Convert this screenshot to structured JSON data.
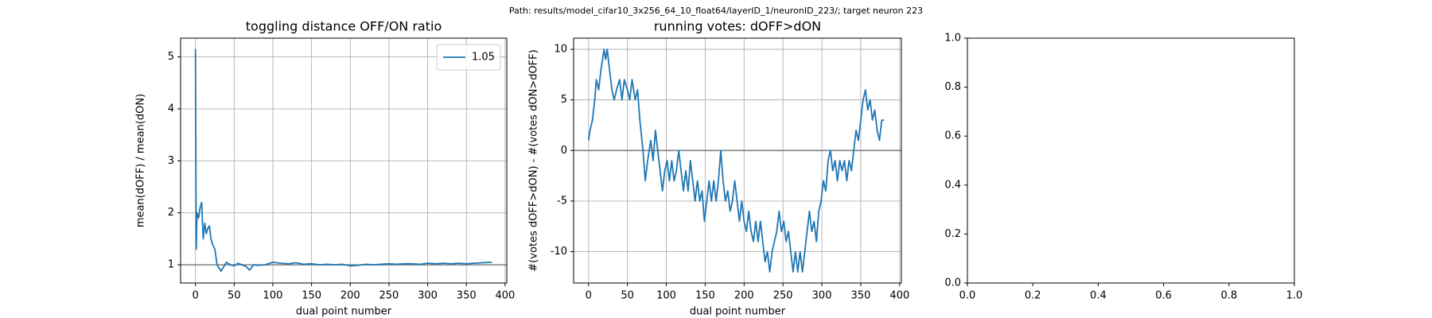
{
  "suptitle": "Path: results/model_cifar10_3x256_64_10_float64/layerID_1/neuronID_223/; target neuron 223",
  "chart_data": [
    {
      "type": "line",
      "title": "toggling distance OFF/ON ratio",
      "x_label": "dual point number",
      "y_label": "mean(dOFF) / mean(dON)",
      "x": [
        0,
        1,
        2,
        4,
        6,
        8,
        10,
        12,
        14,
        16,
        18,
        20,
        22,
        25,
        28,
        30,
        33,
        36,
        40,
        45,
        50,
        55,
        60,
        65,
        70,
        75,
        80,
        90,
        100,
        110,
        120,
        130,
        140,
        150,
        160,
        170,
        180,
        190,
        200,
        210,
        220,
        230,
        240,
        250,
        260,
        270,
        280,
        290,
        300,
        310,
        320,
        330,
        340,
        350,
        360,
        370,
        383
      ],
      "series": [
        {
          "name": "1.05",
          "color": "#1f77b4",
          "values": [
            5.15,
            1.3,
            2.0,
            1.9,
            2.1,
            2.2,
            1.5,
            1.8,
            1.6,
            1.7,
            1.75,
            1.5,
            1.4,
            1.3,
            1.0,
            0.95,
            0.88,
            0.95,
            1.05,
            1.0,
            0.98,
            1.03,
            1.0,
            0.97,
            0.9,
            1.0,
            0.99,
            1.0,
            1.05,
            1.03,
            1.02,
            1.04,
            1.01,
            1.02,
            1.0,
            1.01,
            1.0,
            1.01,
            0.98,
            0.99,
            1.01,
            1.0,
            1.01,
            1.02,
            1.01,
            1.02,
            1.02,
            1.01,
            1.03,
            1.02,
            1.03,
            1.02,
            1.03,
            1.02,
            1.03,
            1.04,
            1.05
          ]
        }
      ],
      "hline": 1,
      "hline_color": "#808080",
      "xlim": [
        -19.2,
        402.2
      ],
      "ylim": [
        0.65,
        5.36
      ],
      "xticks": [
        0,
        50,
        100,
        150,
        200,
        250,
        300,
        350,
        400
      ],
      "yticks": [
        1,
        2,
        3,
        4,
        5
      ],
      "grid": true,
      "legend": "upper right"
    },
    {
      "type": "line",
      "title": "running votes: dOFF>dON",
      "x_label": "dual point number",
      "y_label": "#(votes dOFF>dON) - #(votes dON>dOFF)",
      "x": [
        0,
        2,
        5,
        8,
        10,
        13,
        16,
        18,
        20,
        22,
        24,
        27,
        30,
        33,
        36,
        40,
        43,
        46,
        50,
        53,
        56,
        60,
        63,
        66,
        70,
        73,
        76,
        80,
        83,
        86,
        89,
        92,
        95,
        98,
        101,
        104,
        107,
        110,
        113,
        116,
        119,
        122,
        125,
        128,
        131,
        134,
        137,
        140,
        143,
        146,
        149,
        152,
        155,
        158,
        161,
        164,
        167,
        170,
        173,
        176,
        179,
        182,
        185,
        188,
        191,
        194,
        197,
        200,
        203,
        206,
        209,
        212,
        215,
        218,
        221,
        224,
        227,
        230,
        233,
        236,
        239,
        242,
        245,
        248,
        251,
        254,
        257,
        260,
        263,
        266,
        269,
        272,
        275,
        278,
        281,
        284,
        287,
        290,
        293,
        296,
        299,
        302,
        305,
        308,
        311,
        314,
        317,
        320,
        323,
        326,
        329,
        332,
        335,
        338,
        341,
        344,
        347,
        350,
        353,
        356,
        359,
        362,
        365,
        368,
        371,
        374,
        377,
        380
      ],
      "series": [
        {
          "color": "#1f77b4",
          "values": [
            1,
            2,
            3,
            5,
            7,
            6,
            8,
            9,
            10,
            9,
            10,
            8,
            6,
            5,
            6,
            7,
            5,
            7,
            6,
            5,
            7,
            5,
            6,
            3,
            0,
            -3,
            -1,
            1,
            -1,
            2,
            0,
            -2,
            -4,
            -2,
            -1,
            -3,
            -1,
            -3,
            -2,
            0,
            -2,
            -4,
            -2,
            -4,
            -1,
            -3,
            -5,
            -3,
            -5,
            -4,
            -7,
            -5,
            -3,
            -5,
            -3,
            -5,
            -3,
            0,
            -3,
            -5,
            -4,
            -6,
            -5,
            -3,
            -5,
            -7,
            -5,
            -7,
            -8,
            -6,
            -8,
            -9,
            -7,
            -9,
            -7,
            -9,
            -11,
            -10,
            -12,
            -10,
            -9,
            -8,
            -6,
            -8,
            -7,
            -9,
            -8,
            -10,
            -12,
            -10,
            -12,
            -10,
            -12,
            -10,
            -8,
            -6,
            -8,
            -7,
            -9,
            -6,
            -5,
            -3,
            -4,
            -1,
            0,
            -2,
            -1,
            -3,
            -1,
            -2,
            -1,
            -3,
            -1,
            -2,
            0,
            2,
            1,
            3,
            5,
            6,
            4,
            5,
            3,
            4,
            2,
            1,
            3,
            3
          ]
        }
      ],
      "hline": 0,
      "hline_color": "#808080",
      "xlim": [
        -19.2,
        402.2
      ],
      "ylim": [
        -13.1,
        11.1
      ],
      "xticks": [
        0,
        50,
        100,
        150,
        200,
        250,
        300,
        350,
        400
      ],
      "yticks": [
        -10,
        -5,
        0,
        5,
        10
      ],
      "grid": true
    },
    {
      "type": "line",
      "series": [],
      "xlim": [
        0,
        1
      ],
      "ylim": [
        0,
        1
      ],
      "xticks": [
        {
          "value": 0,
          "label": "0.0"
        },
        {
          "value": 0.2,
          "label": "0.2"
        },
        {
          "value": 0.4,
          "label": "0.4"
        },
        {
          "value": 0.6,
          "label": "0.6"
        },
        {
          "value": 0.8,
          "label": "0.8"
        },
        {
          "value": 1,
          "label": "1.0"
        }
      ],
      "yticks": [
        {
          "value": 0,
          "label": "0.0"
        },
        {
          "value": 0.2,
          "label": "0.2"
        },
        {
          "value": 0.4,
          "label": "0.4"
        },
        {
          "value": 0.6,
          "label": "0.6"
        },
        {
          "value": 0.8,
          "label": "0.8"
        },
        {
          "value": 1,
          "label": "1.0"
        }
      ],
      "grid": false
    }
  ]
}
